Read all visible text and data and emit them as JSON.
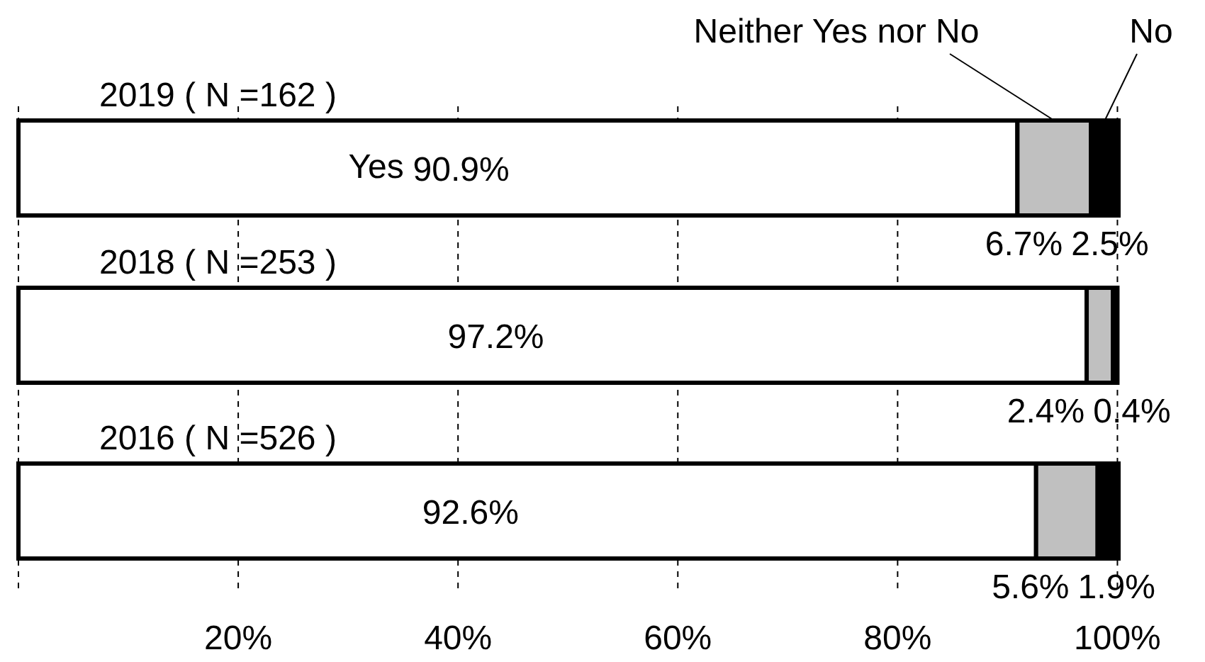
{
  "chart_data": {
    "type": "bar",
    "orientation": "horizontal",
    "stacked": true,
    "categories": [
      "2019 ( N =162 )",
      "2018 ( N =253 )",
      "2016 ( N =526 )"
    ],
    "series": [
      {
        "name": "Yes",
        "color": "#ffffff",
        "values": [
          90.9,
          97.2,
          92.6
        ],
        "value_labels": [
          "90.9%",
          "97.2%",
          "92.6%"
        ]
      },
      {
        "name": "Neither Yes nor No",
        "color": "#c0c0c0",
        "values": [
          6.7,
          2.4,
          5.6
        ],
        "value_labels": [
          "6.7%",
          "2.4%",
          "5.6%"
        ]
      },
      {
        "name": "No",
        "color": "#000000",
        "values": [
          2.5,
          0.4,
          1.9
        ],
        "value_labels": [
          "2.5%",
          "0.4%",
          "1.9%"
        ]
      }
    ],
    "xlim": [
      0,
      100.1
    ],
    "xticks": [
      {
        "value": 0,
        "label": null
      },
      {
        "value": 20,
        "label": "20%"
      },
      {
        "value": 40,
        "label": "40%"
      },
      {
        "value": 60,
        "label": "60%"
      },
      {
        "value": 80,
        "label": "80%"
      },
      {
        "value": 100,
        "label": "100%"
      }
    ],
    "grid": "x"
  }
}
